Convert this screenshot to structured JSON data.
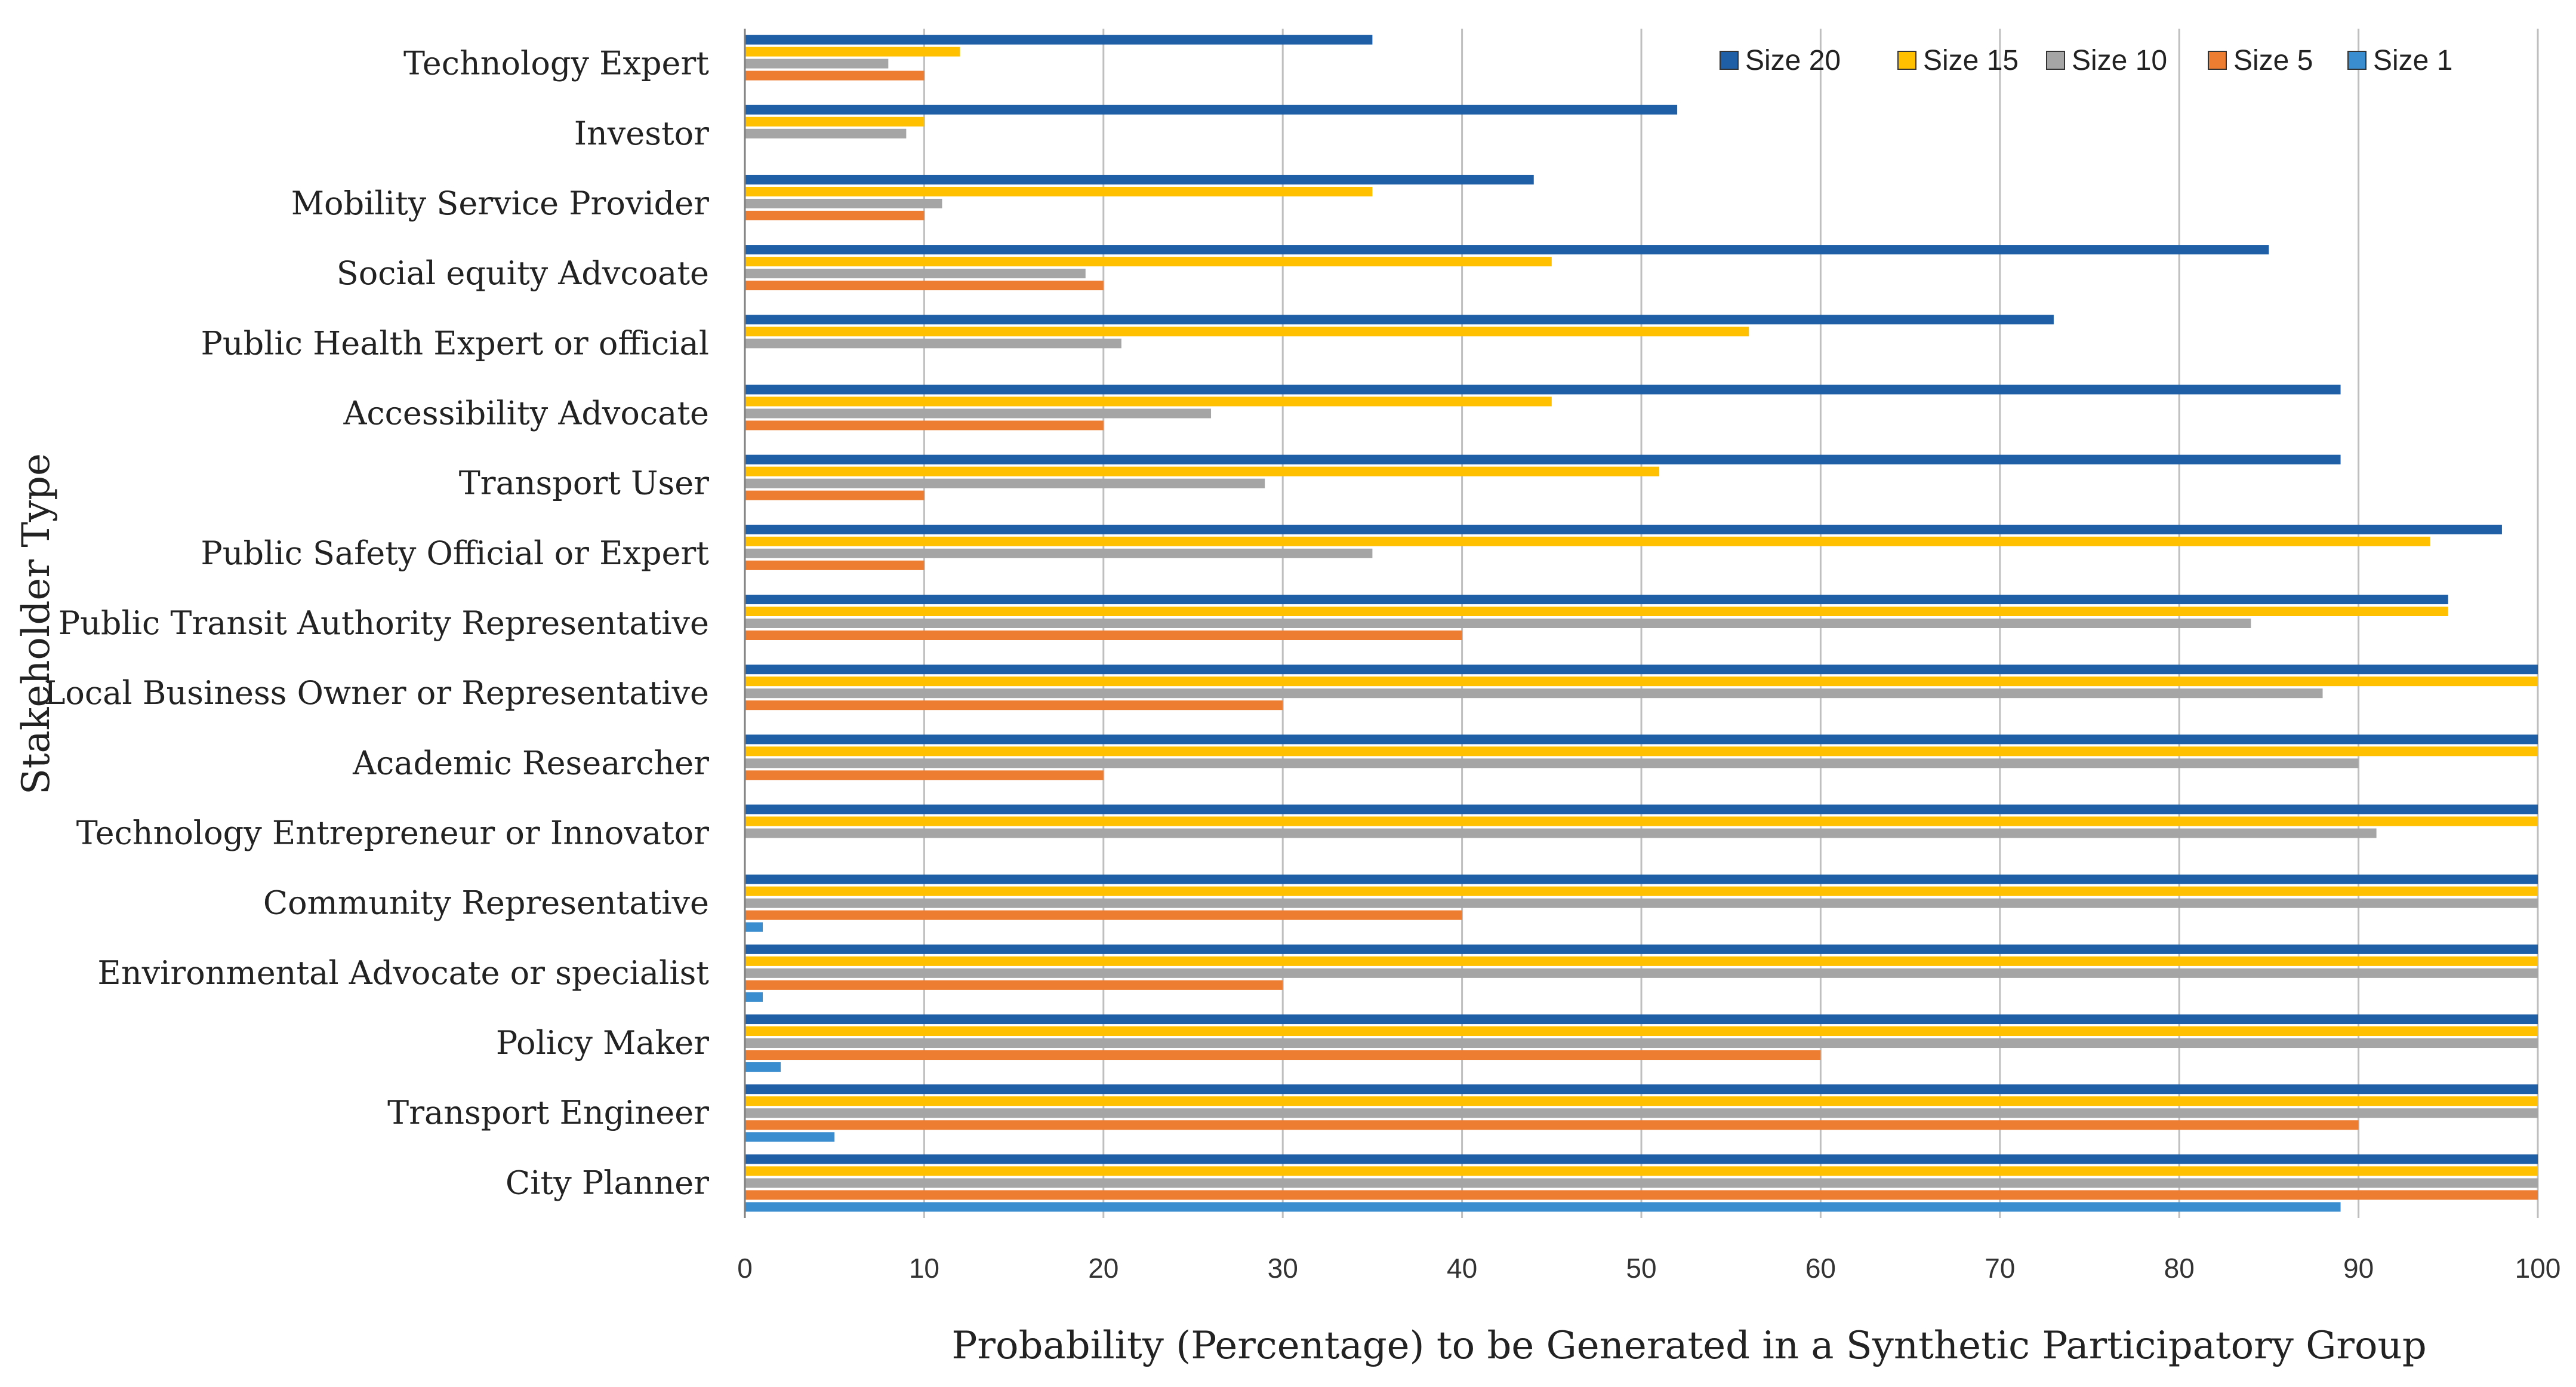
{
  "chart_data": {
    "type": "bar",
    "orientation": "horizontal",
    "title": "",
    "xlabel": "Probability  (Percentage) to be Generated in a Synthetic Participatory  Group",
    "ylabel": "Stakeholder Type",
    "xlim": [
      0,
      100
    ],
    "xticks": [
      "0",
      "10",
      "20",
      "30",
      "40",
      "50",
      "60",
      "70",
      "80",
      "90",
      "100"
    ],
    "grid": true,
    "legend_position": "top-right",
    "categories": [
      "Technology Expert",
      "Investor",
      "Mobility Service Provider",
      "Social equity Advcoate",
      "Public Health Expert or official",
      "Accessibility Advocate",
      "Transport User",
      "Public Safety Official or Expert",
      "Public Transit Authority Representative",
      "Local Business Owner or Representative",
      "Academic Researcher",
      "Technology Entrepreneur or Innovator",
      "Community Representative",
      "Environmental Advocate or specialist",
      "Policy Maker",
      "Transport Engineer",
      "City Planner"
    ],
    "series": [
      {
        "name": "Size 20",
        "color": "#1f5fa6",
        "values": [
          35,
          52,
          44,
          85,
          73,
          89,
          89,
          98,
          95,
          100,
          100,
          100,
          100,
          100,
          100,
          100,
          100
        ]
      },
      {
        "name": "Size 15",
        "color": "#ffc000",
        "values": [
          12,
          10,
          35,
          45,
          56,
          45,
          51,
          94,
          95,
          100,
          100,
          100,
          100,
          100,
          100,
          100,
          100
        ]
      },
      {
        "name": "Size 10",
        "color": "#a5a5a5",
        "values": [
          8,
          9,
          11,
          19,
          21,
          26,
          29,
          35,
          84,
          88,
          90,
          91,
          100,
          100,
          100,
          100,
          100
        ]
      },
      {
        "name": "Size 5",
        "color": "#ed7d31",
        "values": [
          10,
          0,
          10,
          20,
          0,
          20,
          10,
          10,
          40,
          30,
          20,
          0,
          40,
          30,
          60,
          90,
          100
        ]
      },
      {
        "name": "Size 1",
        "color": "#3a8dce",
        "values": [
          0,
          0,
          0,
          0,
          0,
          0,
          0,
          0,
          0,
          0,
          0,
          0,
          1,
          1,
          2,
          5,
          89
        ]
      }
    ]
  }
}
